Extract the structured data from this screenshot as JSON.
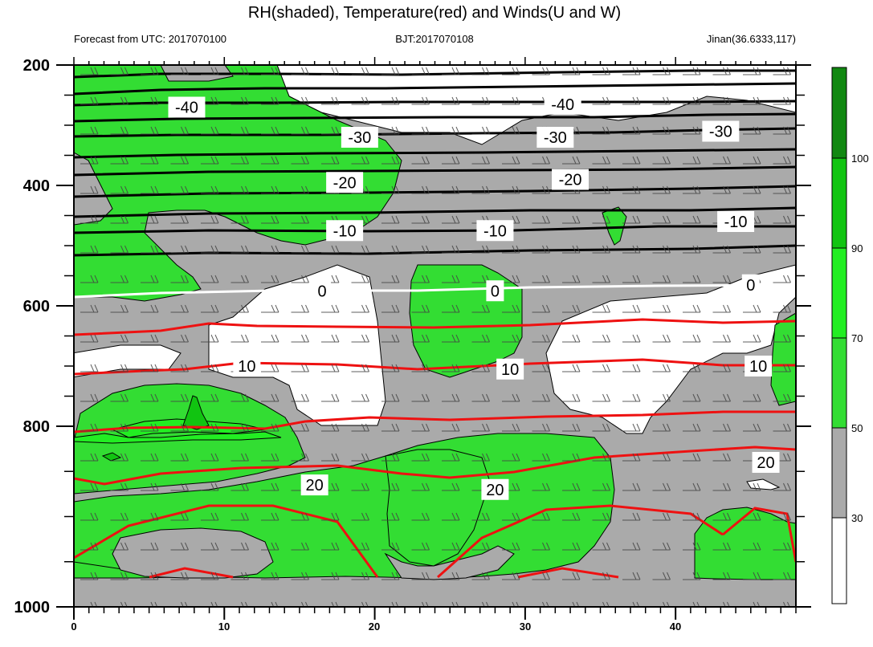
{
  "header": {
    "title": "RH(shaded), Temperature(red) and Winds(U and W)",
    "left": "Forecast from UTC: 2017070100",
    "center": "BJT:2017070108",
    "right": "Jinan(36.6333,117)"
  },
  "chart_data": {
    "type": "contour",
    "x_ticks": [
      "0",
      "10",
      "20",
      "30",
      "40"
    ],
    "y_ticks": [
      "200",
      "400",
      "600",
      "800",
      "1000"
    ],
    "xlim": [
      0,
      48
    ],
    "ylim_pressure": [
      1000,
      200
    ],
    "colorbar": {
      "levels": [
        "30",
        "50",
        "70",
        "90",
        "100"
      ],
      "colors": [
        "#ffffff",
        "#aaaaaa",
        "#33dd33",
        "#22ee22",
        "#11c411",
        "#118811"
      ]
    },
    "isotherm_labels": [
      {
        "text": "-40",
        "x": 7.5,
        "p": 270
      },
      {
        "text": "-40",
        "x": 32.5,
        "p": 265
      },
      {
        "text": "-30",
        "x": 19,
        "p": 320
      },
      {
        "text": "-30",
        "x": 32,
        "p": 320
      },
      {
        "text": "-30",
        "x": 43,
        "p": 310
      },
      {
        "text": "-20",
        "x": 18,
        "p": 395
      },
      {
        "text": "-20",
        "x": 33,
        "p": 390
      },
      {
        "text": "-10",
        "x": 18,
        "p": 475
      },
      {
        "text": "-10",
        "x": 28,
        "p": 475
      },
      {
        "text": "-10",
        "x": 44,
        "p": 460
      },
      {
        "text": "0",
        "x": 16.5,
        "p": 575
      },
      {
        "text": "0",
        "x": 28,
        "p": 575
      },
      {
        "text": "0",
        "x": 45,
        "p": 565
      },
      {
        "text": "10",
        "x": 11.5,
        "p": 700
      },
      {
        "text": "10",
        "x": 29,
        "p": 705
      },
      {
        "text": "10",
        "x": 45.5,
        "p": 700
      },
      {
        "text": "20",
        "x": 16,
        "p": 865
      },
      {
        "text": "20",
        "x": 28,
        "p": 870
      },
      {
        "text": "20",
        "x": 46,
        "p": 840
      }
    ]
  }
}
